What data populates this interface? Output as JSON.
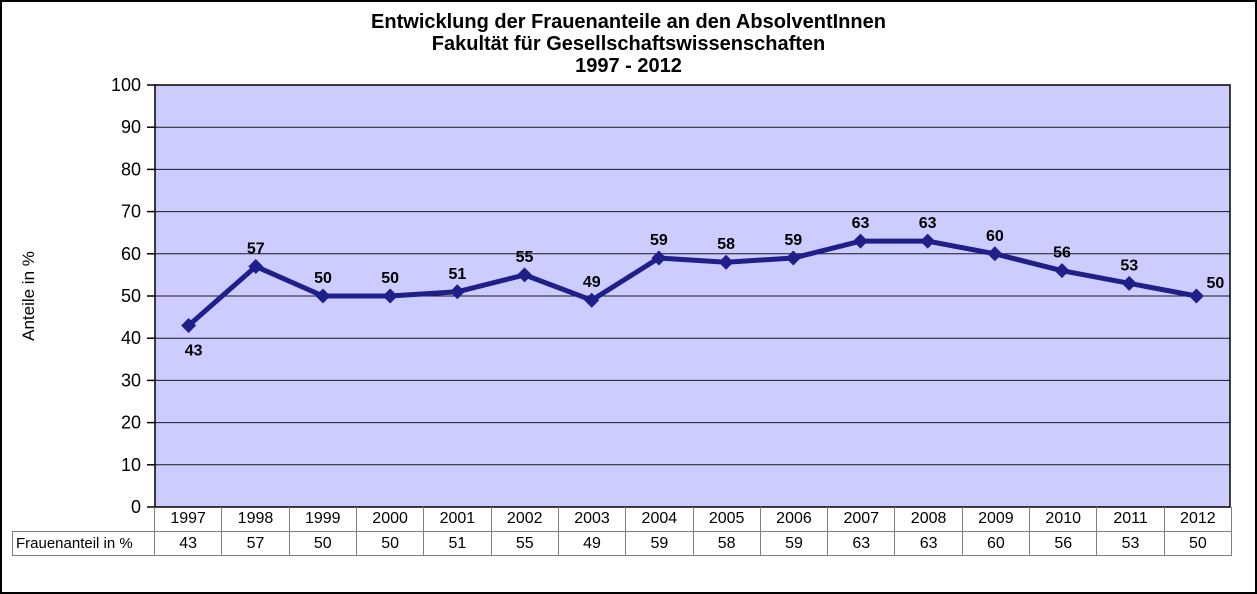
{
  "title_lines": [
    "Entwicklung der Frauenanteile an den AbsolventInnen",
    "Fakultät für Gesellschaftswissenschaften",
    "1997 - 2012"
  ],
  "y_axis_label": "Anteile in %",
  "table": {
    "row_label": "Frauenanteil in %"
  },
  "chart_data": {
    "type": "line",
    "title": "Entwicklung der Frauenanteile an den AbsolventInnen Fakultät für Gesellschaftswissenschaften 1997 - 2012",
    "categories": [
      "1997",
      "1998",
      "1999",
      "2000",
      "2001",
      "2002",
      "2003",
      "2004",
      "2005",
      "2006",
      "2007",
      "2008",
      "2009",
      "2010",
      "2011",
      "2012"
    ],
    "series": [
      {
        "name": "Frauenanteil in %",
        "values": [
          43,
          57,
          50,
          50,
          51,
          55,
          49,
          59,
          58,
          59,
          63,
          63,
          60,
          56,
          53,
          50
        ]
      }
    ],
    "xlabel": "",
    "ylabel": "Anteile in %",
    "ylim": [
      0,
      100
    ],
    "ytick_step": 10,
    "grid": true,
    "legend": false,
    "marker": "diamond",
    "data_labels": true
  },
  "colors": {
    "line": "#1F1F8A",
    "plot_bg": "#CCCCFF",
    "plot_border": "#000000",
    "grid": "#1A1A1A",
    "table_border": "#808080",
    "text": "#000000",
    "background": "#FFFFFF"
  }
}
